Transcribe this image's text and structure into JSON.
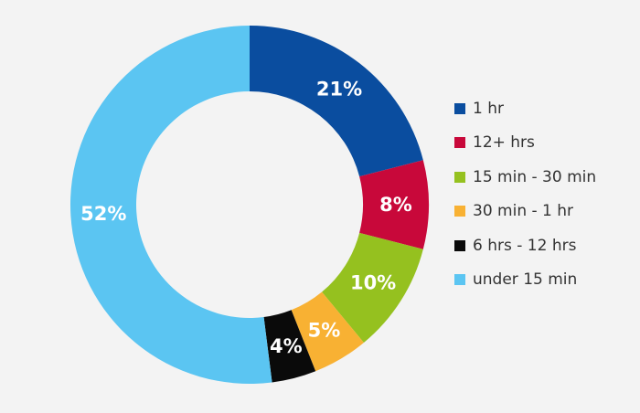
{
  "chart_data": {
    "type": "pie",
    "style": "donut",
    "legend_position": "right",
    "slices": [
      {
        "name": "1 hr",
        "value": 21,
        "label": "21%",
        "color": "#0a4d9f"
      },
      {
        "name": "12+ hrs",
        "value": 8,
        "label": "8%",
        "color": "#c8083a"
      },
      {
        "name": "15 min - 30 min",
        "value": 10,
        "label": "10%",
        "color": "#95c11f"
      },
      {
        "name": "30 min - 1 hr",
        "value": 5,
        "label": "5%",
        "color": "#f8b133"
      },
      {
        "name": "6 hrs - 12 hrs",
        "value": 4,
        "label": "4%",
        "color": "#0a0a0a"
      },
      {
        "name": "under 15 min",
        "value": 52,
        "label": "52%",
        "color": "#5bc5f2"
      }
    ]
  }
}
